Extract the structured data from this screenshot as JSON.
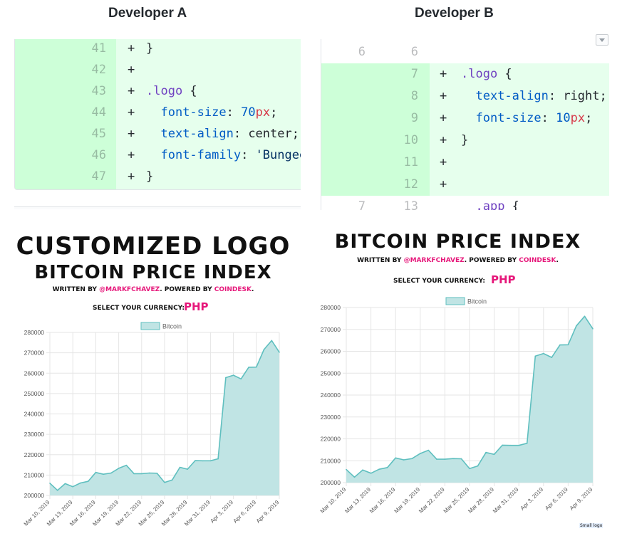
{
  "developer_a": {
    "title": "Developer A",
    "diff": [
      {
        "ln": "41",
        "plus": "+",
        "code": "}"
      },
      {
        "ln": "42",
        "plus": "+",
        "code": ""
      },
      {
        "ln": "43",
        "plus": "+",
        "code": ".logo {"
      },
      {
        "ln": "44",
        "plus": "+",
        "code": "  font-size: 70px;"
      },
      {
        "ln": "45",
        "plus": "+",
        "code": "  text-align: center;"
      },
      {
        "ln": "46",
        "plus": "+",
        "code": "  font-family: 'Bungee"
      },
      {
        "ln": "47",
        "plus": "+",
        "code": "}"
      }
    ],
    "app": {
      "heading1": "CUSTOMIZED LOGO",
      "heading2": "BITCOIN PRICE INDEX",
      "written_by": "WRITTEN BY ",
      "author": "@MARKFCHAVEZ",
      "powered_by": ". POWERED BY ",
      "provider": "COINDESK",
      "period": ".",
      "currency_label": "SELECT YOUR CURRENCY:",
      "currency_value": "PHP"
    }
  },
  "developer_b": {
    "title": "Developer B",
    "diff": [
      {
        "ln1": "6",
        "ln2": "6",
        "plus": "",
        "code": "",
        "added": false
      },
      {
        "ln1": "",
        "ln2": "7",
        "plus": "+",
        "code": ".logo {",
        "added": true
      },
      {
        "ln1": "",
        "ln2": "8",
        "plus": "+",
        "code": "  text-align: right;",
        "added": true
      },
      {
        "ln1": "",
        "ln2": "9",
        "plus": "+",
        "code": "  font-size: 10px;",
        "added": true
      },
      {
        "ln1": "",
        "ln2": "10",
        "plus": "+",
        "code": "}",
        "added": true
      },
      {
        "ln1": "",
        "ln2": "11",
        "plus": "+",
        "code": "",
        "added": true
      },
      {
        "ln1": "",
        "ln2": "12",
        "plus": "+",
        "code": "",
        "added": true
      },
      {
        "ln1": "7",
        "ln2": "13",
        "plus": "",
        "code": "  .app {",
        "added": false
      }
    ],
    "app": {
      "heading1": "BITCOIN PRICE INDEX",
      "written_by": "WRITTEN BY ",
      "author": "@MARKFCHAVEZ",
      "powered_by": ". POWERED BY ",
      "provider": "COINDESK",
      "period": ".",
      "currency_label": "SELECT YOUR CURRENCY:",
      "currency_value": "PHP",
      "small_logo": "Small logo"
    }
  },
  "colors": {
    "fill": "#c0e4e4",
    "line": "#5fbfbf",
    "pink": "#e6177a",
    "diff_add": "#e6ffed",
    "diff_gutter": "#cdffd8"
  },
  "chart_data": [
    {
      "type": "area",
      "legend": "Bitcoin",
      "legend_position": "top",
      "grid": true,
      "ylim": [
        200000,
        280000
      ],
      "yticks": [
        200000,
        210000,
        220000,
        230000,
        240000,
        250000,
        260000,
        270000,
        280000
      ],
      "xtick_labels": [
        "Mar 10, 2019",
        "Mar 13, 2019",
        "Mar 16, 2019",
        "Mar 19, 2019",
        "Mar 22, 2019",
        "Mar 25, 2019",
        "Mar 28, 2019",
        "Mar 31, 2019",
        "Apr 3, 2019",
        "Apr 6, 2019",
        "Apr 9, 2019"
      ],
      "series": [
        {
          "name": "Bitcoin",
          "values": [
            206000,
            202500,
            205800,
            204300,
            206100,
            206900,
            211300,
            210400,
            211000,
            213300,
            214800,
            210700,
            210700,
            211000,
            210900,
            206400,
            207600,
            213800,
            212900,
            217100,
            217000,
            217000,
            218000,
            257800,
            259000,
            257200,
            262900,
            263000,
            271600,
            276000,
            270300
          ]
        }
      ]
    },
    {
      "type": "area",
      "legend": "Bitcoin",
      "legend_position": "top",
      "grid": true,
      "ylim": [
        200000,
        280000
      ],
      "yticks": [
        200000,
        210000,
        220000,
        230000,
        240000,
        250000,
        260000,
        270000,
        280000
      ],
      "xtick_labels": [
        "Mar 10, 2019",
        "Mar 13, 2019",
        "Mar 16, 2019",
        "Mar 19, 2019",
        "Mar 22, 2019",
        "Mar 25, 2019",
        "Mar 28, 2019",
        "Mar 31, 2019",
        "Apr 3, 2019",
        "Apr 6, 2019",
        "Apr 9, 2019"
      ],
      "series": [
        {
          "name": "Bitcoin",
          "values": [
            206000,
            202500,
            205800,
            204300,
            206100,
            206900,
            211300,
            210400,
            211000,
            213300,
            214800,
            210700,
            210700,
            211000,
            210900,
            206400,
            207600,
            213800,
            212900,
            217100,
            217000,
            217000,
            218000,
            257800,
            259000,
            257200,
            262900,
            263000,
            271600,
            276000,
            270300
          ]
        }
      ]
    }
  ]
}
